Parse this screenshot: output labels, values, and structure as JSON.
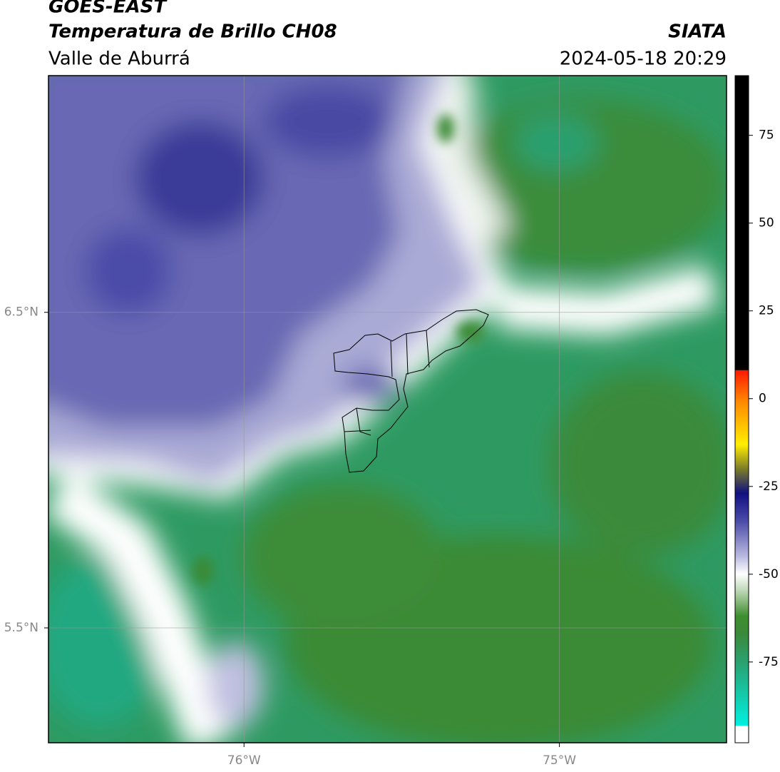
{
  "header": {
    "title": "GOES-EAST",
    "subtitle": "Temperatura de Brillo CH08",
    "region": "Valle de Aburrá",
    "source": "SIATA",
    "datetime": "2024-05-18 20:29"
  },
  "map": {
    "xlim": [
      -76.62,
      -74.47
    ],
    "ylim": [
      5.136,
      7.25
    ],
    "xticks": [
      {
        "value": -76,
        "label": "76°W"
      },
      {
        "value": -75,
        "label": "75°W"
      }
    ],
    "yticks": [
      {
        "value": 6.5,
        "label": "6.5°N"
      },
      {
        "value": 5.5,
        "label": "5.5°N"
      }
    ],
    "grid": true
  },
  "colorbar": {
    "lim": [
      -98,
      92
    ],
    "ticks": [
      75,
      50,
      25,
      0,
      -25,
      -50,
      -75
    ]
  }
}
